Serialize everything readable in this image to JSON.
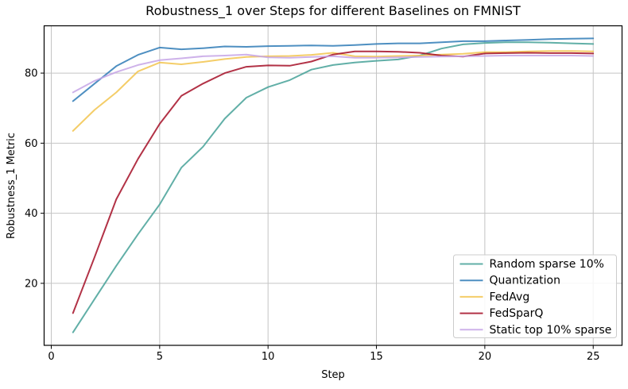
{
  "figure": {
    "title": "Robustness_1 over Steps for different Baselines on FMNIST",
    "xlabel": "Step",
    "ylabel": "Robustness_1 Metric"
  },
  "chart_data": {
    "type": "line",
    "title": "Robustness_1 over Steps for different Baselines on FMNIST",
    "xlabel": "Step",
    "ylabel": "Robustness_1 Metric",
    "x": [
      1,
      2,
      3,
      4,
      5,
      6,
      7,
      8,
      9,
      10,
      11,
      12,
      13,
      14,
      15,
      16,
      17,
      18,
      19,
      20,
      21,
      22,
      23,
      24,
      25
    ],
    "series": [
      {
        "name": "Random sparse 10%",
        "color": "#45a198",
        "values": [
          6.0,
          15.5,
          25.0,
          34.0,
          42.5,
          53.0,
          59.0,
          67.0,
          73.0,
          76.0,
          78.0,
          81.0,
          82.3,
          83.0,
          83.5,
          83.9,
          85.0,
          87.0,
          88.2,
          88.6,
          88.8,
          88.8,
          88.7,
          88.5,
          88.3
        ]
      },
      {
        "name": "Quantization",
        "color": "#2f7bb6",
        "values": [
          72.0,
          77.0,
          82.0,
          85.2,
          87.3,
          86.8,
          87.1,
          87.6,
          87.5,
          87.7,
          87.8,
          87.9,
          87.8,
          88.0,
          88.3,
          88.5,
          88.5,
          88.8,
          89.1,
          89.1,
          89.3,
          89.5,
          89.7,
          89.8,
          89.9
        ]
      },
      {
        "name": "FedAvg",
        "color": "#f2c44e",
        "values": [
          63.5,
          69.5,
          74.5,
          80.5,
          83.0,
          82.5,
          83.2,
          84.0,
          84.6,
          84.8,
          84.9,
          85.2,
          85.8,
          84.8,
          84.7,
          84.9,
          85.0,
          85.3,
          85.5,
          86.0,
          86.0,
          86.2,
          86.3,
          86.3,
          86.2
        ]
      },
      {
        "name": "FedSparQ",
        "color": "#a40e26",
        "values": [
          11.5,
          27.5,
          44.0,
          55.5,
          65.5,
          73.5,
          77.0,
          80.0,
          81.8,
          82.2,
          82.1,
          83.3,
          85.3,
          86.2,
          86.2,
          86.1,
          85.8,
          85.0,
          84.7,
          85.6,
          85.7,
          85.8,
          85.7,
          85.7,
          85.6
        ]
      },
      {
        "name": "Static top 10% sparse",
        "color": "#c6a5e6",
        "values": [
          74.5,
          77.8,
          80.3,
          82.3,
          83.7,
          84.2,
          84.8,
          85.0,
          85.3,
          84.5,
          84.4,
          84.6,
          84.8,
          84.4,
          84.4,
          84.5,
          84.6,
          84.7,
          84.8,
          84.9,
          85.0,
          85.0,
          85.0,
          85.0,
          84.9
        ]
      }
    ],
    "xticks": [
      0,
      5,
      10,
      15,
      20,
      25
    ],
    "yticks": [
      20,
      40,
      60,
      80
    ],
    "xlim": [
      -0.33,
      26.33
    ],
    "ylim": [
      2.3,
      93.5
    ],
    "grid": true,
    "legend": {
      "position": "lower right"
    },
    "style": {
      "grid_color": "#c4c4c4",
      "spine_color": "#000000",
      "tick_color": "#000000",
      "background": "#ffffff",
      "legend_border": "#cccccc",
      "line_width": 2,
      "line_opacity": 0.85
    }
  }
}
